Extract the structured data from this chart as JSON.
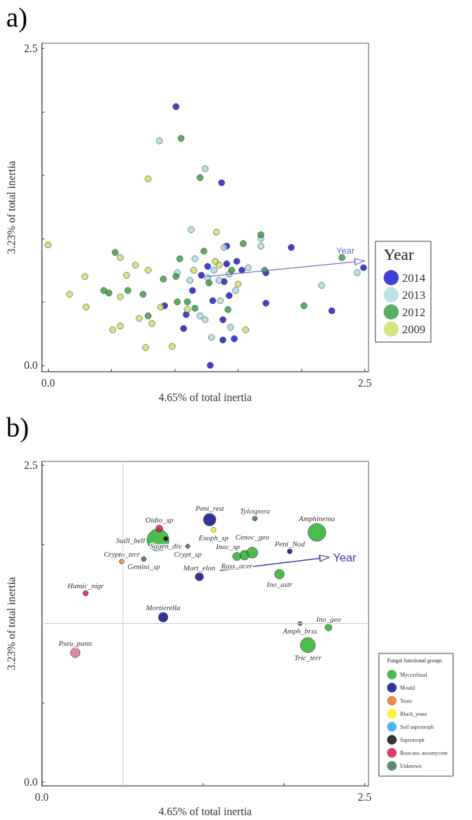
{
  "chart_data": [
    {
      "type": "scatter",
      "title": "a)",
      "xlabel": "4.65% of total inertia",
      "ylabel": "3.23% of total inertia",
      "legend_title": "Year",
      "legend": "right",
      "marker": "circle",
      "xlim": [
        -0.05,
        2.53
      ],
      "ylim": [
        -0.05,
        2.54
      ],
      "xticks": [
        {
          "value": 0,
          "label": "0.0"
        },
        {
          "value": 0.5,
          "label": null
        },
        {
          "value": 1,
          "label": null
        },
        {
          "value": 1.5,
          "label": null
        },
        {
          "value": 2,
          "label": null
        },
        {
          "value": 2.5,
          "label": "2.5"
        }
      ],
      "yticks": [
        {
          "value": 0,
          "label": "0.0"
        },
        {
          "value": 0.5,
          "label": null
        },
        {
          "value": 1,
          "label": null
        },
        {
          "value": 1.5,
          "label": null
        },
        {
          "value": 2,
          "label": null
        },
        {
          "value": 2.5,
          "label": "2.5"
        }
      ],
      "series": [
        {
          "name": "2014",
          "color": "#1010c8",
          "x": [
            1.01,
            1.37,
            1.41,
            1.92,
            1.49,
            1.26,
            1.41,
            1.53,
            1.72,
            2.49,
            1.21,
            1.39,
            1.14,
            1.43,
            1.3,
            1.72,
            0.92,
            1.09,
            1.38,
            1.07,
            2.24,
            1.38,
            1.47,
            1.28
          ],
          "values": [
            2.04,
            1.44,
            0.94,
            0.93,
            0.82,
            0.78,
            0.8,
            0.75,
            0.73,
            0.77,
            0.71,
            0.66,
            0.59,
            0.55,
            0.51,
            0.49,
            0.47,
            0.4,
            0.36,
            0.29,
            0.43,
            0.2,
            0.21,
            0.0
          ]
        },
        {
          "name": "2013",
          "color": "#a8dce0",
          "x": [
            0.88,
            1.24,
            1.13,
            1.68,
            1.68,
            1.39,
            1.16,
            1.02,
            1.31,
            1.58,
            1.26,
            1.43,
            1.12,
            1.35,
            2.44,
            2.16,
            1.48,
            1.36,
            1.2,
            1.24,
            1.44,
            1.29
          ],
          "values": [
            1.77,
            1.55,
            1.07,
            1.0,
            0.94,
            0.93,
            0.84,
            0.73,
            0.75,
            0.77,
            0.69,
            0.72,
            0.67,
            0.67,
            0.73,
            0.63,
            0.59,
            0.51,
            0.39,
            0.36,
            0.3,
            0.22
          ]
        },
        {
          "name": "2012",
          "color": "#2e9a3a",
          "x": [
            1.05,
            1.2,
            1.68,
            1.54,
            1.23,
            0.53,
            1.04,
            2.32,
            1.45,
            1.71,
            1.01,
            0.91,
            1.27,
            0.44,
            0.48,
            0.63,
            0.75,
            1.02,
            1.1,
            1.16,
            1.42,
            2.02,
            0.79
          ],
          "values": [
            1.79,
            1.48,
            1.03,
            0.96,
            0.9,
            0.89,
            0.84,
            0.85,
            0.75,
            0.75,
            0.7,
            0.68,
            0.65,
            0.59,
            0.57,
            0.59,
            0.56,
            0.5,
            0.5,
            0.45,
            0.44,
            0.47,
            0.39
          ]
        },
        {
          "name": "2009",
          "color": "#c8e064",
          "x": [
            0.79,
            0.0,
            1.33,
            0.57,
            0.69,
            0.79,
            0.29,
            0.62,
            1.15,
            1.32,
            1.35,
            1.5,
            0.17,
            0.57,
            0.3,
            0.89,
            1.1,
            0.72,
            0.82,
            0.51,
            0.57,
            1.56,
            0.77,
            0.98
          ],
          "values": [
            1.47,
            0.95,
            1.05,
            0.85,
            0.79,
            0.75,
            0.7,
            0.71,
            0.75,
            0.82,
            0.79,
            0.64,
            0.56,
            0.54,
            0.46,
            0.46,
            0.44,
            0.37,
            0.33,
            0.28,
            0.31,
            0.28,
            0.14,
            0.15
          ]
        },
        {
          "name": "Year",
          "type": "line",
          "marker": "triangle",
          "color": "#6a6ad8",
          "x": [
            1.25,
            2.46
          ],
          "values": [
            0.7,
            0.82
          ]
        }
      ]
    },
    {
      "type": "bubble",
      "title": "b)",
      "xlabel": "4.65% of total inertia",
      "ylabel": "3.23% of total inertia",
      "legend_title": "Fungal functional groups",
      "legend": "bottom right",
      "marker": "circle",
      "xlim": [
        0,
        2.53
      ],
      "ylim": [
        -0.03,
        2.53
      ],
      "xticks": [
        {
          "value": 0,
          "label": "0.0"
        },
        {
          "value": 0.625,
          "label": null
        },
        {
          "value": 1.25,
          "label": null
        },
        {
          "value": 1.875,
          "label": null
        },
        {
          "value": 2.5,
          "label": "2.5"
        }
      ],
      "yticks": [
        {
          "value": 0,
          "label": "0.0"
        },
        {
          "value": 0.625,
          "label": null
        },
        {
          "value": 1.25,
          "label": null
        },
        {
          "value": 1.875,
          "label": null
        },
        {
          "value": 2.5,
          "label": "2.5"
        }
      ],
      "ref_lines": [
        {
          "axis": "x",
          "value": 0.625,
          "color": "#c8c8c8"
        },
        {
          "axis": "y",
          "value": 1.25,
          "color": "#c8c8c8"
        }
      ],
      "series": [
        {
          "name": "Mycorrhizal",
          "color": "#22aa22",
          "x": [
            0.9,
            2.13,
            1.57,
            1.63,
            1.51,
            1.84,
            2.22,
            2.06
          ],
          "values": [
            1.91,
            1.97,
            1.79,
            1.81,
            1.78,
            1.64,
            1.22,
            1.08
          ],
          "sizes": [
            1,
            0.66,
            0.19,
            0.25,
            0.14,
            0.19,
            0.1,
            0.47
          ]
        },
        {
          "name": "Mould",
          "color": "#000080",
          "x": [
            1.3,
            1.92,
            1.22,
            0.94
          ],
          "values": [
            2.07,
            1.82,
            1.62,
            1.3
          ],
          "sizes": [
            0.32,
            0.05,
            0.14,
            0.19
          ]
        },
        {
          "name": "Yeast",
          "color": "#e07020",
          "x": [
            0.62
          ],
          "values": [
            1.74
          ],
          "sizes": [
            0.05
          ]
        },
        {
          "name": "Black_yeast",
          "color": "#ffee00",
          "x": [
            1.33
          ],
          "values": [
            1.99
          ],
          "sizes": [
            0.05
          ]
        },
        {
          "name": "Soil saprotroph",
          "color": "#1ea0f0"
        },
        {
          "name": "Saprotroph",
          "color": "#000000",
          "x": [
            0.96
          ],
          "values": [
            1.92
          ],
          "sizes": [
            0.04
          ]
        },
        {
          "name": "Root-ass. ascomycete",
          "color": "#d0103a",
          "x": [
            0.91,
            0.34,
            0.26
          ],
          "values": [
            2.0,
            1.49,
            1.02
          ],
          "sizes": [
            0.1,
            0.06,
            0.19
          ],
          "colors": [
            "#d0103a",
            "#d0103a",
            "#d86898"
          ]
        },
        {
          "name": "Unknown",
          "color": "#2e6e50",
          "x": [
            1.65,
            1.13,
            0.79,
            2.0
          ],
          "values": [
            2.08,
            1.86,
            1.76,
            1.25
          ],
          "sizes": [
            0.05,
            0.04,
            0.05,
            0.04
          ],
          "colors": [
            "#2e6e50",
            "#2e6e50",
            "#4a5a70",
            "#2e6e50"
          ]
        },
        {
          "name": "Year",
          "type": "line",
          "marker": "triangle",
          "color": "#3a3aa8",
          "x": [
            1.38,
            2.19
          ],
          "values": [
            1.67,
            1.77
          ]
        }
      ],
      "annotations": [
        {
          "text": "Oidio_sp",
          "x": 0.91,
          "y": 2.0
        },
        {
          "text": "Peni_rest",
          "x": 1.3,
          "y": 2.07
        },
        {
          "text": "Tylospora",
          "x": 1.65,
          "y": 2.08
        },
        {
          "text": "Amphinema",
          "x": 2.13,
          "y": 1.97
        },
        {
          "text": "Exoph_sp",
          "x": 1.33,
          "y": 1.99
        },
        {
          "text": "Suill_bell",
          "x": 0.9,
          "y": 1.91
        },
        {
          "text": "Sagen_div",
          "x": 0.96,
          "y": 1.92
        },
        {
          "text": "Inoc_sp",
          "x": 1.57,
          "y": 1.79
        },
        {
          "text": "Peni_Nod",
          "x": 1.92,
          "y": 1.82
        },
        {
          "text": "Crypt_sp",
          "x": 1.13,
          "y": 1.86
        },
        {
          "text": "Cenoc_geo",
          "x": 1.63,
          "y": 1.81
        },
        {
          "text": "Crypto_terr",
          "x": 0.62,
          "y": 1.74
        },
        {
          "text": "Gemini_sp",
          "x": 0.79,
          "y": 1.76
        },
        {
          "text": "Russ_acer",
          "x": 1.51,
          "y": 1.78
        },
        {
          "text": "Humic_nigr",
          "x": 0.34,
          "y": 1.49
        },
        {
          "text": "Mort_elon",
          "x": 1.22,
          "y": 1.62
        },
        {
          "text": "Ino_astr",
          "x": 1.84,
          "y": 1.64
        },
        {
          "text": "Ino_geo",
          "x": 2.22,
          "y": 1.22
        },
        {
          "text": "Mortierella",
          "x": 0.94,
          "y": 1.3
        },
        {
          "text": "Amph_brss",
          "x": 2.0,
          "y": 1.25
        },
        {
          "text": "Tric_terr",
          "x": 2.06,
          "y": 1.08
        },
        {
          "text": "Pseu_pann",
          "x": 0.26,
          "y": 1.02
        }
      ]
    }
  ]
}
